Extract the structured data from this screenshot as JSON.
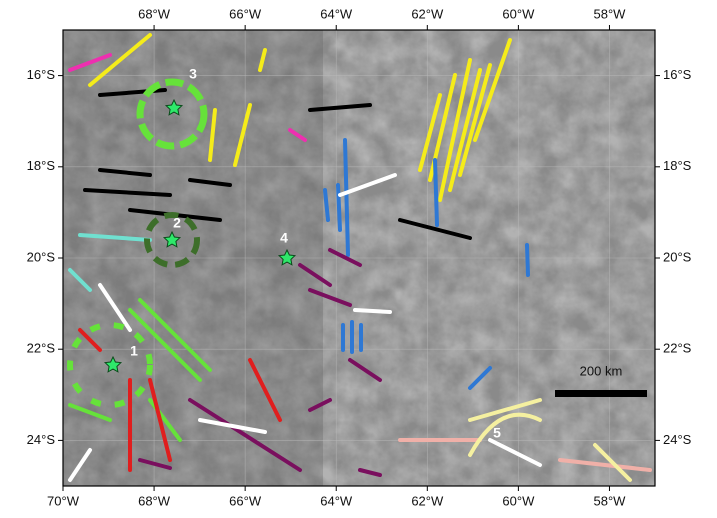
{
  "map": {
    "xlim": [
      -70,
      -57
    ],
    "ylim": [
      -25,
      -15
    ],
    "xticks": [
      {
        "value": -70,
        "label": "70°W"
      },
      {
        "value": -68,
        "label": "68°W"
      },
      {
        "value": -66,
        "label": "66°W"
      },
      {
        "value": -64,
        "label": "64°W"
      },
      {
        "value": -62,
        "label": "62°W"
      },
      {
        "value": -60,
        "label": "60°W"
      },
      {
        "value": -58,
        "label": "58°W"
      }
    ],
    "yticks": [
      {
        "value": -16,
        "label": "16°S"
      },
      {
        "value": -18,
        "label": "18°S"
      },
      {
        "value": -20,
        "label": "20°S"
      },
      {
        "value": -22,
        "label": "22°S"
      },
      {
        "value": -24,
        "label": "24°S"
      }
    ],
    "feature_labels": [
      "1",
      "2",
      "3",
      "4",
      "5"
    ],
    "scale_bar": "200 km"
  }
}
